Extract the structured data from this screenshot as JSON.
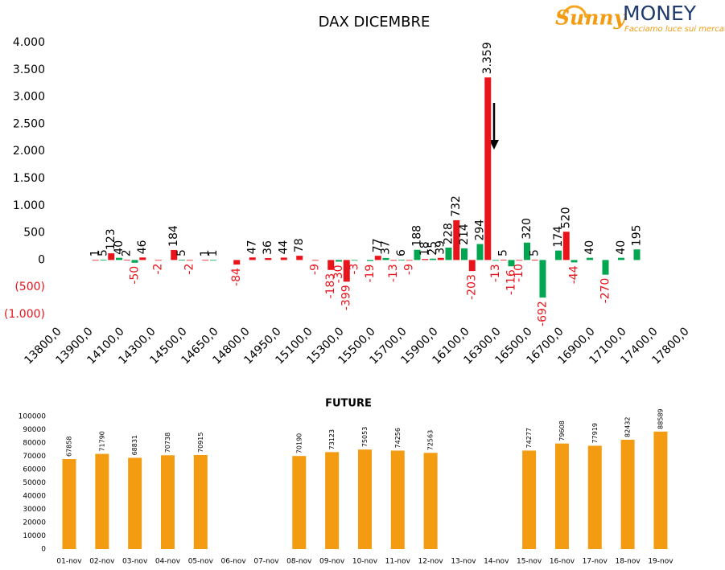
{
  "logo": {
    "brand": "Sunny",
    "name": "MONEY",
    "tagline": "Facciamo luce sui mercati"
  },
  "chart_data": [
    {
      "type": "bar",
      "title": "DAX DICEMBRE",
      "categories": [
        "13800,0",
        null,
        null,
        null,
        "13900,0",
        null,
        null,
        null,
        "14100,0",
        null,
        null,
        null,
        "14300,0",
        null,
        null,
        null,
        "14500,0",
        null,
        null,
        null,
        "14650,0",
        null,
        null,
        null,
        "14800,0",
        null,
        null,
        null,
        "14950,0",
        null,
        null,
        null,
        "15100,0",
        null,
        null,
        null,
        "15300,0",
        null,
        null,
        null,
        "15500,0",
        null,
        null,
        null,
        "15700,0",
        null,
        null,
        null,
        "15900,0",
        null,
        null,
        null,
        "16100,0",
        null,
        null,
        null,
        "16300,0",
        null,
        null,
        null,
        "16500,0",
        null,
        null,
        null,
        "16700,0",
        null,
        null,
        null,
        "16900,0",
        null,
        null,
        null,
        "17100,0",
        null,
        null,
        null,
        "17400,0",
        null,
        null,
        null,
        "17800,0"
      ],
      "values": [
        null,
        null,
        null,
        null,
        null,
        1,
        5,
        123,
        40,
        2,
        -50,
        46,
        null,
        -2,
        null,
        184,
        5,
        -2,
        null,
        1,
        1,
        null,
        null,
        -84,
        null,
        47,
        null,
        36,
        null,
        44,
        null,
        78,
        null,
        -9,
        null,
        -183,
        -30,
        -399,
        -3,
        null,
        -19,
        77,
        37,
        -13,
        6,
        -9,
        188,
        18,
        25,
        39,
        228,
        732,
        214,
        -203,
        294,
        3359,
        -13,
        5,
        -116,
        -10,
        320,
        5,
        -692,
        null,
        174,
        520,
        -44,
        null,
        40,
        null,
        -270,
        null,
        40,
        null,
        195,
        null,
        null,
        null,
        null,
        null,
        null
      ],
      "value_labels": [
        null,
        null,
        null,
        null,
        null,
        null,
        null,
        null,
        null,
        null,
        null,
        null,
        null,
        null,
        null,
        null,
        null,
        null,
        null,
        null,
        null,
        null,
        null,
        null,
        null,
        null,
        null,
        null,
        null,
        null,
        null,
        null,
        null,
        null,
        null,
        null,
        null,
        null,
        null,
        null,
        null,
        null,
        null,
        null,
        null,
        null,
        null,
        null,
        null,
        null,
        null,
        null,
        null,
        null,
        null,
        "3.359",
        null,
        null,
        null,
        null,
        null,
        null,
        null,
        null,
        null,
        null,
        null,
        null,
        null,
        null,
        null,
        null,
        null,
        null,
        null,
        null,
        null,
        null,
        null,
        null,
        null
      ],
      "colors": [
        null,
        null,
        null,
        null,
        null,
        "#e8141b",
        "#00a650",
        "#e8141b",
        "#00a650",
        "#e8141b",
        "#00a650",
        "#e8141b",
        null,
        "#e8141b",
        null,
        "#e8141b",
        "#00a650",
        "#e8141b",
        null,
        "#e8141b",
        "#00a650",
        null,
        null,
        "#e8141b",
        null,
        "#e8141b",
        null,
        "#e8141b",
        null,
        "#e8141b",
        null,
        "#e8141b",
        null,
        "#e8141b",
        null,
        "#e8141b",
        "#00a650",
        "#e8141b",
        "#00a650",
        null,
        "#00a650",
        "#e8141b",
        "#00a650",
        "#e8141b",
        "#00a650",
        "#e8141b",
        "#00a650",
        "#e8141b",
        "#00a650",
        "#e8141b",
        "#00a650",
        "#e8141b",
        "#00a650",
        "#e8141b",
        "#00a650",
        "#e8141b",
        "#00a650",
        "#e8141b",
        "#00a650",
        "#e8141b",
        "#00a650",
        "#e8141b",
        "#00a650",
        null,
        "#00a650",
        "#e8141b",
        "#00a650",
        null,
        "#00a650",
        null,
        "#00a650",
        null,
        "#00a650",
        null,
        "#00a650",
        null,
        null,
        null,
        null,
        null,
        null
      ],
      "negative_label_color": "#e8141b",
      "ylim": [
        -1000,
        4000
      ],
      "yticks": [
        {
          "value": -1000,
          "label": "(1.000)"
        },
        {
          "value": -500,
          "label": "(500)"
        },
        0,
        {
          "value": 500,
          "label": "500"
        },
        {
          "value": 1000,
          "label": "1.000"
        },
        {
          "value": 1500,
          "label": "1.500"
        },
        {
          "value": 2000,
          "label": "2.000"
        },
        {
          "value": 2500,
          "label": "2.500"
        },
        {
          "value": 3000,
          "label": "3.000"
        },
        {
          "value": 3500,
          "label": "3.500"
        },
        {
          "value": 4000,
          "label": "4.000"
        }
      ],
      "grid": false
    },
    {
      "type": "bar",
      "title": "FUTURE",
      "categories": [
        "01-nov",
        "02-nov",
        "03-nov",
        "04-nov",
        "05-nov",
        "06-nov",
        "07-nov",
        "08-nov",
        "09-nov",
        "10-nov",
        "11-nov",
        "12-nov",
        "13-nov",
        "14-nov",
        "15-nov",
        "16-nov",
        "17-nov",
        "18-nov",
        "19-nov"
      ],
      "values": [
        67858,
        71790,
        68831,
        70738,
        70915,
        null,
        null,
        70190,
        73123,
        75053,
        74256,
        72563,
        null,
        null,
        74277,
        79608,
        77919,
        82432,
        88589
      ],
      "color": "#f39c12",
      "ylim": [
        0,
        100000
      ],
      "yticks": [
        0,
        10000,
        20000,
        30000,
        40000,
        50000,
        60000,
        70000,
        80000,
        90000,
        100000
      ],
      "grid": false
    }
  ]
}
